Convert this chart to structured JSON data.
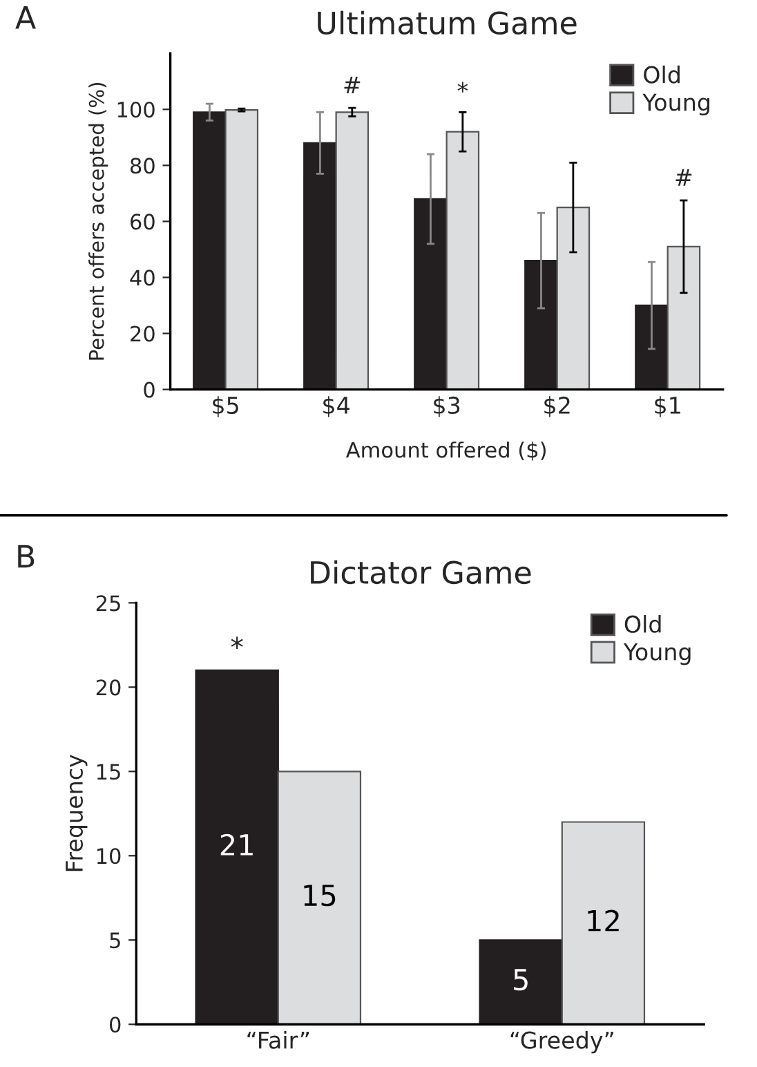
{
  "chart_data": [
    {
      "type": "bar",
      "title": "Ultimatum Game",
      "xlabel": "Amount offered ($)",
      "ylabel": "Percent offers accepted (%)",
      "categories": [
        "$5",
        "$4",
        "$3",
        "$2",
        "$1"
      ],
      "series": [
        {
          "name": "Old",
          "color": "#231f20",
          "values": [
            99,
            88,
            68,
            46,
            30
          ],
          "errors": [
            3,
            11,
            16,
            17,
            15.5
          ]
        },
        {
          "name": "Young",
          "color": "#dcdddf",
          "values": [
            99.8,
            99,
            92,
            65,
            51
          ],
          "errors": [
            0.5,
            1.5,
            7,
            16,
            16.5
          ]
        }
      ],
      "ylim": [
        0,
        120
      ],
      "yticks": [
        0,
        20,
        40,
        60,
        80,
        100
      ],
      "legend": "top right",
      "grid": false,
      "annotations": [
        "A",
        "#",
        "*",
        "#"
      ]
    },
    {
      "type": "bar",
      "title": "Dictator Game",
      "ylabel": "Frequency",
      "categories": [
        "“Fair”",
        "“Greedy”"
      ],
      "series": [
        {
          "name": "Old",
          "color": "#231f20",
          "values": [
            21,
            5
          ]
        },
        {
          "name": "Young",
          "color": "#dcdddf",
          "values": [
            15,
            12
          ]
        }
      ],
      "ylim": [
        0,
        25
      ],
      "yticks": [
        0,
        5,
        10,
        15,
        20,
        25
      ],
      "legend": "top right",
      "grid": false,
      "data_labels": true,
      "annotations": [
        "B",
        "*"
      ]
    }
  ]
}
